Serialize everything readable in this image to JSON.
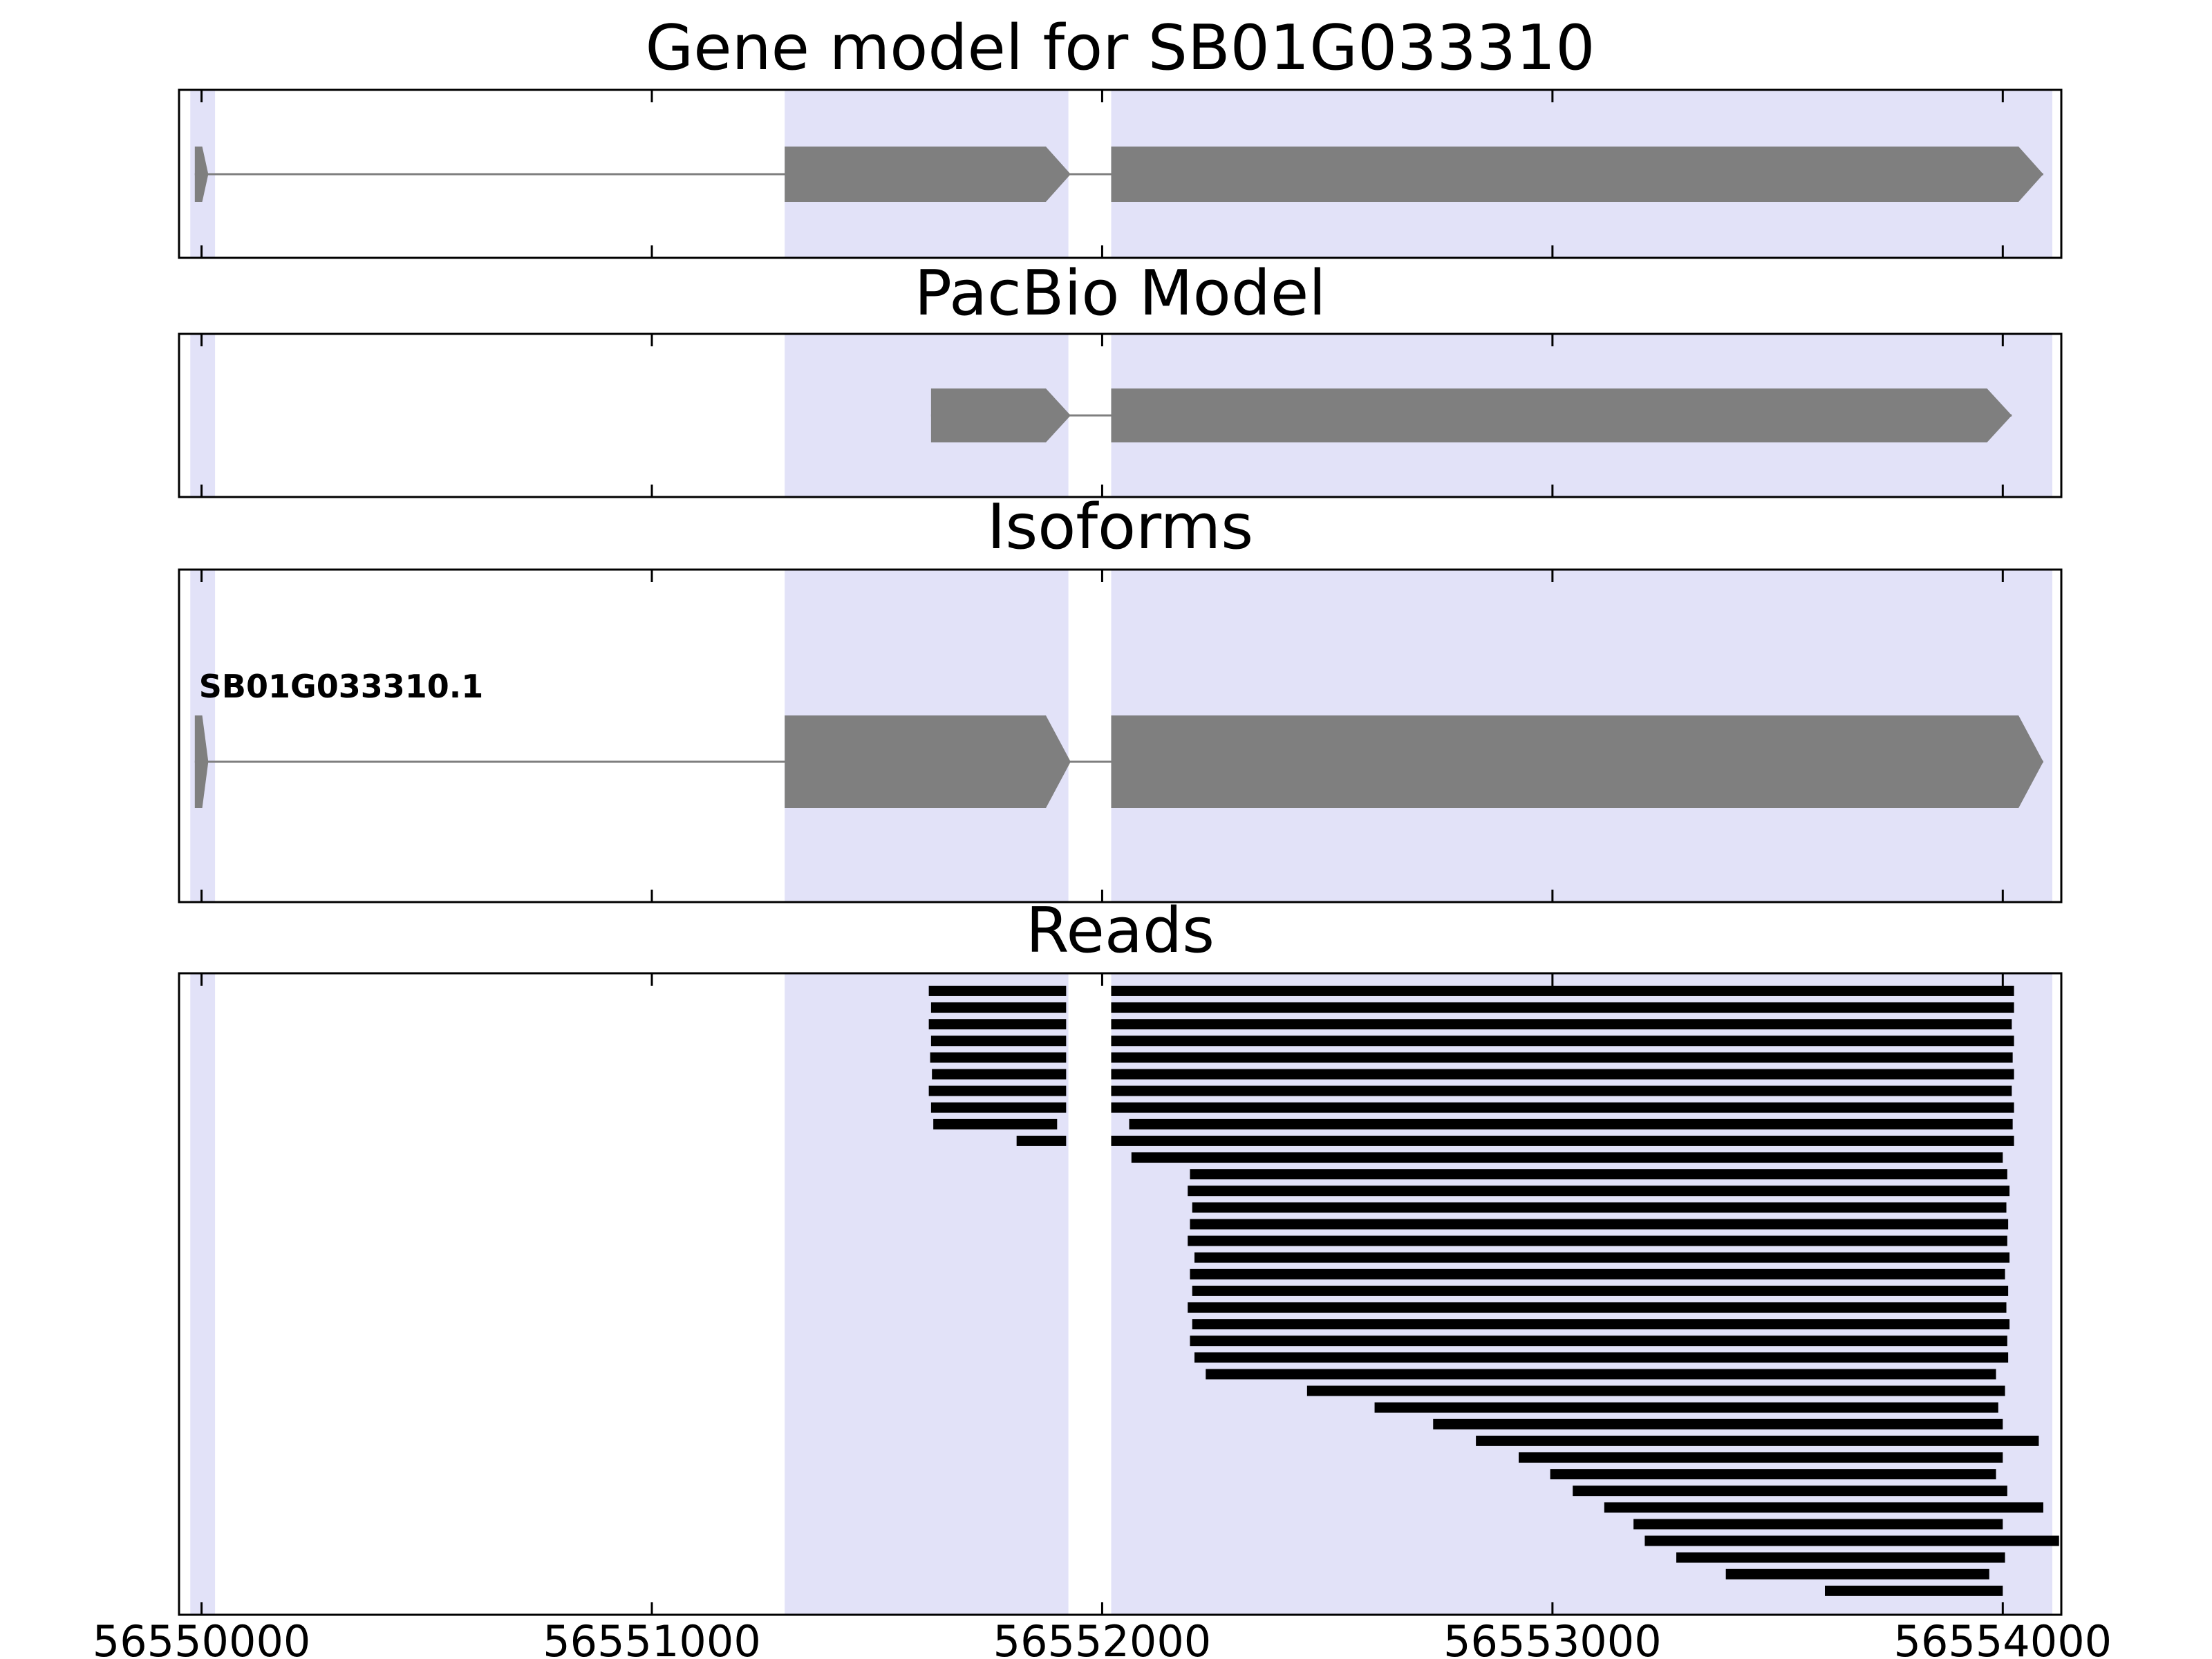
{
  "colors": {
    "background": "#ffffff",
    "panel_border": "#000000",
    "highlight": "#e2e2f8",
    "feature": "#7f7f7f",
    "read": "#000000",
    "text": "#000000"
  },
  "chart_data": {
    "type": "genome-browser-tracks",
    "x_axis": {
      "domain": [
        56549950,
        56554130
      ],
      "ticks": [
        56550000,
        56551000,
        56552000,
        56553000,
        56554000
      ],
      "tick_labels": [
        "56550000",
        "56551000",
        "56552000",
        "56553000",
        "56554000"
      ]
    },
    "highlight_regions": [
      {
        "start": 56549975,
        "end": 56550030
      },
      {
        "start": 56551295,
        "end": 56551925
      },
      {
        "start": 56552020,
        "end": 56554110
      }
    ],
    "panels": [
      {
        "id": "gene_model",
        "title": "Gene model for SB01G033310",
        "type": "transcript",
        "transcripts": [
          {
            "label": "",
            "strand": "+",
            "exons": [
              [
                56549985,
                56550015
              ],
              [
                56551295,
                56551930
              ],
              [
                56552020,
                56554090
              ]
            ]
          }
        ]
      },
      {
        "id": "pacbio_model",
        "title": "PacBio Model",
        "type": "transcript",
        "transcripts": [
          {
            "label": "",
            "strand": "+",
            "exons": [
              [
                56551620,
                56551930
              ],
              [
                56552020,
                56554020
              ]
            ]
          }
        ]
      },
      {
        "id": "isoforms",
        "title": "Isoforms",
        "type": "transcript",
        "transcripts": [
          {
            "label": "SB01G033310.1",
            "strand": "+",
            "exons": [
              [
                56549985,
                56550015
              ],
              [
                56551295,
                56551930
              ],
              [
                56552020,
                56554090
              ]
            ]
          }
        ]
      },
      {
        "id": "reads",
        "title": "Reads",
        "type": "reads",
        "reads": [
          [
            [
              56551615,
              56551920
            ],
            [
              56552020,
              56554025
            ]
          ],
          [
            [
              56551620,
              56551920
            ],
            [
              56552020,
              56554025
            ]
          ],
          [
            [
              56551615,
              56551920
            ],
            [
              56552020,
              56554020
            ]
          ],
          [
            [
              56551620,
              56551920
            ],
            [
              56552020,
              56554025
            ]
          ],
          [
            [
              56551618,
              56551920
            ],
            [
              56552020,
              56554022
            ]
          ],
          [
            [
              56551622,
              56551920
            ],
            [
              56552020,
              56554025
            ]
          ],
          [
            [
              56551615,
              56551920
            ],
            [
              56552020,
              56554020
            ]
          ],
          [
            [
              56551620,
              56551920
            ],
            [
              56552020,
              56554025
            ]
          ],
          [
            [
              56551625,
              56551900
            ],
            [
              56552060,
              56554022
            ]
          ],
          [
            [
              56551810,
              56551920
            ],
            [
              56552020,
              56554025
            ]
          ],
          [
            [
              56552065,
              56554000
            ]
          ],
          [
            [
              56552195,
              56554010
            ]
          ],
          [
            [
              56552190,
              56554015
            ]
          ],
          [
            [
              56552200,
              56554008
            ]
          ],
          [
            [
              56552195,
              56554012
            ]
          ],
          [
            [
              56552190,
              56554010
            ]
          ],
          [
            [
              56552205,
              56554015
            ]
          ],
          [
            [
              56552195,
              56554005
            ]
          ],
          [
            [
              56552200,
              56554012
            ]
          ],
          [
            [
              56552190,
              56554008
            ]
          ],
          [
            [
              56552200,
              56554015
            ]
          ],
          [
            [
              56552195,
              56554010
            ]
          ],
          [
            [
              56552205,
              56554012
            ]
          ],
          [
            [
              56552230,
              56553985
            ]
          ],
          [
            [
              56552455,
              56554005
            ]
          ],
          [
            [
              56552605,
              56553990
            ]
          ],
          [
            [
              56552735,
              56554000
            ]
          ],
          [
            [
              56552830,
              56554080
            ]
          ],
          [
            [
              56552925,
              56554000
            ]
          ],
          [
            [
              56552995,
              56553985
            ]
          ],
          [
            [
              56553045,
              56554010
            ]
          ],
          [
            [
              56553115,
              56554090
            ]
          ],
          [
            [
              56553180,
              56554000
            ]
          ],
          [
            [
              56553205,
              56554125
            ]
          ],
          [
            [
              56553275,
              56554005
            ]
          ],
          [
            [
              56553385,
              56553970
            ]
          ],
          [
            [
              56553605,
              56554000
            ]
          ]
        ]
      }
    ]
  }
}
